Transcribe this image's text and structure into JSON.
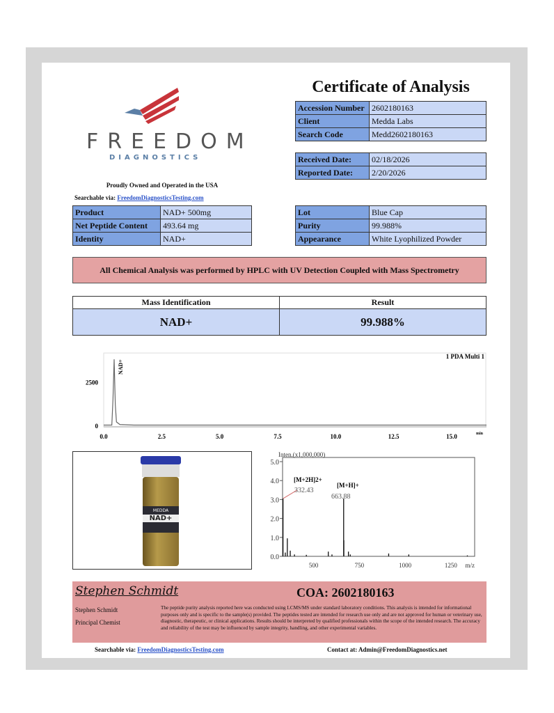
{
  "logo": {
    "name": "FREEDOM",
    "sub": "DIAGNOSTICS",
    "tagline": "Proudly Owned and Operated in the USA",
    "colors": {
      "red": "#c8343a",
      "gray": "#555555",
      "blue": "#5b7fa6"
    }
  },
  "searchable": {
    "label": "Searchable via:",
    "link": "FreedomDiagnosticsTesting.com"
  },
  "title": "Certificate of Analysis",
  "info": [
    {
      "label": "Accession Number",
      "value": "2602180163"
    },
    {
      "label": "Client",
      "value": "Medda Labs"
    },
    {
      "label": "Search Code",
      "value": "Medd2602180163"
    }
  ],
  "dates": [
    {
      "label": "Received Date:",
      "value": "02/18/2026"
    },
    {
      "label": "Reported Date:",
      "value": "2/20/2026"
    }
  ],
  "product": [
    {
      "label": "Product",
      "value": "NAD+ 500mg"
    },
    {
      "label": "Net Peptide Content",
      "value": "493.64 mg"
    },
    {
      "label": "Identity",
      "value": "NAD+"
    }
  ],
  "lot": [
    {
      "label": "Lot",
      "value": "Blue Cap"
    },
    {
      "label": "Purity",
      "value": "99.988%"
    },
    {
      "label": "Appearance",
      "value": "White Lyophilized Powder"
    }
  ],
  "banner": "All Chemical Analysis was performed by HPLC with UV Detection Coupled with Mass Spectrometry",
  "mass": {
    "h1": "Mass Identification",
    "h2": "Result",
    "v1": "NAD+",
    "v2": "99.988%"
  },
  "vial": {
    "brand": "MEDDA",
    "product": "NAD+"
  },
  "chart_data": [
    {
      "type": "line",
      "title": "1 PDA Multi 1",
      "xlabel": "min",
      "xlim": [
        0,
        16.5
      ],
      "ylim": [
        0,
        4000
      ],
      "xticks": [
        "0.0",
        "2.5",
        "5.0",
        "7.5",
        "10.0",
        "12.5",
        "15.0"
      ],
      "yticks": [
        "0",
        "2500"
      ],
      "peak_label": "NAD+",
      "points": [
        [
          0,
          20
        ],
        [
          0.35,
          20
        ],
        [
          0.4,
          1500
        ],
        [
          0.45,
          3800
        ],
        [
          0.5,
          1200
        ],
        [
          0.55,
          200
        ],
        [
          0.7,
          50
        ],
        [
          1.3,
          20
        ],
        [
          16.5,
          20
        ]
      ]
    },
    {
      "type": "bar",
      "ylabel": "Inten.(x1,000,000)",
      "xlabel": "m/z",
      "xlim": [
        330,
        1380
      ],
      "ylim": [
        0,
        5
      ],
      "xticks": [
        "500",
        "750",
        "1000",
        "1250"
      ],
      "yticks": [
        "0.0",
        "1.0",
        "2.0",
        "3.0",
        "4.0",
        "5.0"
      ],
      "peaks": [
        [
          332.43,
          3.05
        ],
        [
          345,
          0.2
        ],
        [
          356,
          0.95
        ],
        [
          372,
          0.3
        ],
        [
          395,
          0.1
        ],
        [
          460,
          0.08
        ],
        [
          580,
          0.25
        ],
        [
          600,
          0.1
        ],
        [
          663.88,
          3.05
        ],
        [
          665,
          0.85
        ],
        [
          690,
          0.25
        ],
        [
          700,
          0.1
        ],
        [
          910,
          0.15
        ],
        [
          1020,
          0.1
        ],
        [
          1340,
          0.05
        ]
      ],
      "annotations": [
        {
          "ion": "[M+2H]2+",
          "mz": "332.43"
        },
        {
          "ion": "[M+H]+",
          "mz": "663.88"
        }
      ]
    }
  ],
  "signature": {
    "script": "Stephen Schmidt",
    "name": "Stephen Schmidt",
    "role": "Principal Chemist"
  },
  "coa": "COA: 2602180163",
  "disclaimer": "The peptide purity analysis reported here was conducted using LCMS/MS under standard laboratory conditions. This analysis is intended for informational purposes only and is specific to the sample(s) provided. The peptides tested are intended for research use only and are not approved for human or veterinary use, diagnostic, therapeutic, or clinical applications. Results should be interpreted by qualified professionals within the scope of the intended research. The accuracy and reliability of the test may be influenced by sample integrity, handling, and other experimental variables.",
  "bottom": {
    "search_label": "Searchable via:",
    "search_link": "FreedomDiagnosticsTesting.com",
    "contact": "Contact at: Admin@FreedomDiagnostics.net"
  }
}
